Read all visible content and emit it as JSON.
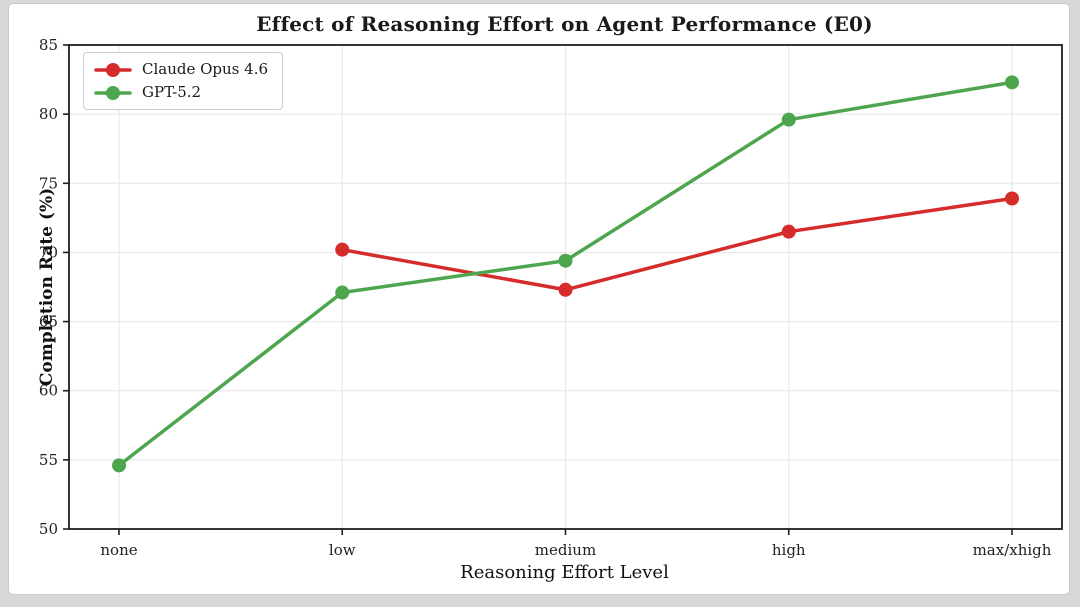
{
  "page": {
    "background_color": "#d8d8d8",
    "card_background_color": "#ffffff"
  },
  "chart_data": {
    "type": "line",
    "title": "Effect of Reasoning Effort on Agent Performance (E0)",
    "xlabel": "Reasoning Effort Level",
    "ylabel": "Completion Rate (%)",
    "categories": [
      "none",
      "low",
      "medium",
      "high",
      "max/xhigh"
    ],
    "series": [
      {
        "name": "Claude Opus 4.6",
        "color": "#d62b2b",
        "values": [
          null,
          70.2,
          67.3,
          71.5,
          73.9
        ]
      },
      {
        "name": "GPT-5.2",
        "color": "#4da64d",
        "values": [
          54.6,
          67.1,
          69.4,
          79.6,
          82.3
        ]
      }
    ],
    "ylim": [
      50,
      85
    ],
    "yticks": [
      50,
      55,
      60,
      65,
      70,
      75,
      80,
      85
    ],
    "grid": true,
    "grid_color": "#e9e9e9",
    "spine_color": "#1f1f1f",
    "legend_position": "upper-left",
    "marker": "circle",
    "line_width": 3.5,
    "marker_radius": 7
  }
}
